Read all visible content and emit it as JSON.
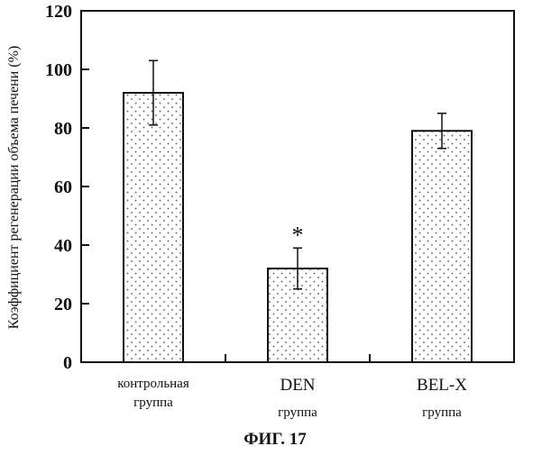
{
  "chart_data": {
    "type": "bar",
    "title": "",
    "ylabel": "Коэффициент регенерации объема печени (%)",
    "xlabel": "",
    "ylim": [
      0,
      120
    ],
    "yticks": [
      0,
      20,
      40,
      60,
      80,
      100,
      120
    ],
    "grid": false,
    "categories": [
      {
        "line1": "контрольная",
        "line2": "группа"
      },
      {
        "line1": "DEN",
        "line2": "группа"
      },
      {
        "line1": "BEL-X",
        "line2": "группа"
      }
    ],
    "values": [
      92,
      32,
      79
    ],
    "errors": [
      11,
      7,
      6
    ],
    "annotations": [
      {
        "category_index": 1,
        "text": "*"
      }
    ],
    "bar_fill": "stippled",
    "bar_color": "#ffffff",
    "dot_color": "#555555",
    "axis_color": "#111111"
  },
  "caption": "ФИГ. 17"
}
